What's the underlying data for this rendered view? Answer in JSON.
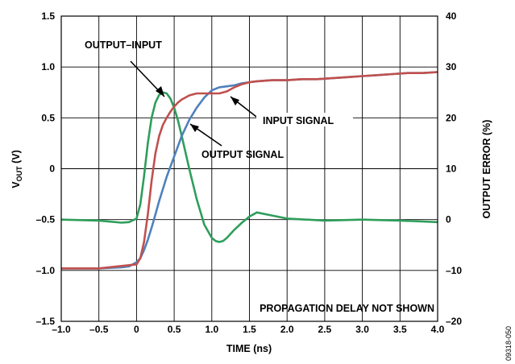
{
  "chart_data": {
    "type": "line",
    "xlabel": "TIME (ns)",
    "ylabel_left_main": "V",
    "ylabel_left_sub": "OUT",
    "ylabel_left_unit": " (V)",
    "ylabel_right": "OUTPUT ERROR (%)",
    "xlim": [
      -1.0,
      4.0
    ],
    "ylim": [
      -1.5,
      1.5
    ],
    "ylim_right": [
      -20,
      40
    ],
    "grid": true,
    "x_ticks": [
      -1.0,
      -0.5,
      0,
      0.5,
      1.0,
      1.5,
      2.0,
      2.5,
      3.0,
      3.5,
      4.0
    ],
    "x_tick_labels": [
      "–1.0",
      "–0.5",
      "0",
      "0.5",
      "1.0",
      "1.5",
      "2.0",
      "2.5",
      "3.0",
      "3.5",
      "4.0"
    ],
    "y_ticks": [
      -1.5,
      -1.0,
      -0.5,
      0,
      0.5,
      1.0,
      1.5
    ],
    "y_tick_labels": [
      "–1.5",
      "–1.0",
      "–0.5",
      "0",
      "0.5",
      "1.0",
      "1.5"
    ],
    "y2_ticks": [
      -20,
      -10,
      0,
      10,
      20,
      30,
      40
    ],
    "y2_tick_labels": [
      "–20",
      "–10",
      "0",
      "10",
      "20",
      "30",
      "40"
    ],
    "series": [
      {
        "name": "INPUT SIGNAL",
        "color": "#c0504d",
        "axis": "left",
        "x": [
          -1.0,
          -0.5,
          0.0,
          0.05,
          0.1,
          0.15,
          0.2,
          0.25,
          0.3,
          0.35,
          0.4,
          0.45,
          0.5,
          0.55,
          0.6,
          0.65,
          0.7,
          0.75,
          0.8,
          0.9,
          1.0,
          1.1,
          1.2,
          1.3,
          1.4,
          1.5,
          1.6,
          1.8,
          2.0,
          2.2,
          2.4,
          2.6,
          2.8,
          3.0,
          3.2,
          3.4,
          3.6,
          3.8,
          4.0
        ],
        "y": [
          -0.98,
          -0.98,
          -0.94,
          -0.88,
          -0.72,
          -0.45,
          -0.12,
          0.15,
          0.32,
          0.43,
          0.5,
          0.56,
          0.61,
          0.65,
          0.68,
          0.7,
          0.72,
          0.73,
          0.74,
          0.74,
          0.74,
          0.74,
          0.76,
          0.8,
          0.83,
          0.85,
          0.86,
          0.87,
          0.87,
          0.88,
          0.88,
          0.89,
          0.9,
          0.91,
          0.92,
          0.93,
          0.94,
          0.94,
          0.95
        ]
      },
      {
        "name": "OUTPUT SIGNAL",
        "color": "#4f81bd",
        "axis": "left",
        "x": [
          -1.0,
          -0.5,
          -0.2,
          -0.1,
          0.0,
          0.05,
          0.1,
          0.15,
          0.2,
          0.25,
          0.3,
          0.35,
          0.4,
          0.5,
          0.6,
          0.7,
          0.8,
          0.9,
          1.0,
          1.1,
          1.2,
          1.3,
          1.4,
          1.5,
          1.6,
          1.8,
          2.0,
          2.2,
          2.4,
          2.6,
          2.8,
          3.0,
          3.2,
          3.4,
          3.6,
          3.8,
          4.0
        ],
        "y": [
          -0.98,
          -0.98,
          -0.97,
          -0.96,
          -0.92,
          -0.88,
          -0.8,
          -0.7,
          -0.58,
          -0.45,
          -0.32,
          -0.2,
          -0.08,
          0.12,
          0.32,
          0.48,
          0.6,
          0.7,
          0.77,
          0.8,
          0.81,
          0.82,
          0.84,
          0.85,
          0.86,
          0.87,
          0.87,
          0.88,
          0.88,
          0.89,
          0.9,
          0.91,
          0.92,
          0.93,
          0.94,
          0.94,
          0.95
        ]
      },
      {
        "name": "OUTPUT–INPUT",
        "color": "#2e9e5b",
        "axis": "right",
        "x": [
          -1.0,
          -0.5,
          -0.2,
          -0.1,
          0.0,
          0.05,
          0.1,
          0.15,
          0.2,
          0.25,
          0.3,
          0.35,
          0.4,
          0.45,
          0.5,
          0.55,
          0.6,
          0.7,
          0.8,
          0.9,
          1.0,
          1.05,
          1.1,
          1.15,
          1.2,
          1.3,
          1.4,
          1.5,
          1.6,
          1.8,
          2.0,
          2.5,
          3.0,
          3.5,
          4.0
        ],
        "y": [
          0.0,
          -0.2,
          -0.6,
          -0.5,
          0.2,
          3.0,
          8.5,
          15.0,
          20.0,
          23.0,
          24.5,
          25.0,
          24.8,
          23.8,
          22.0,
          19.5,
          16.5,
          10.0,
          4.0,
          -1.0,
          -3.6,
          -4.2,
          -4.4,
          -4.2,
          -3.6,
          -2.0,
          -0.6,
          0.6,
          1.4,
          0.8,
          0.2,
          -0.2,
          0.0,
          -0.2,
          -0.5
        ]
      }
    ],
    "annotations": [
      {
        "text": "OUTPUT–INPUT"
      },
      {
        "text": "INPUT SIGNAL"
      },
      {
        "text": "OUTPUT SIGNAL"
      },
      {
        "text": "PROPAGATION DELAY NOT SHOWN"
      }
    ]
  },
  "figure_id": "09318-050"
}
